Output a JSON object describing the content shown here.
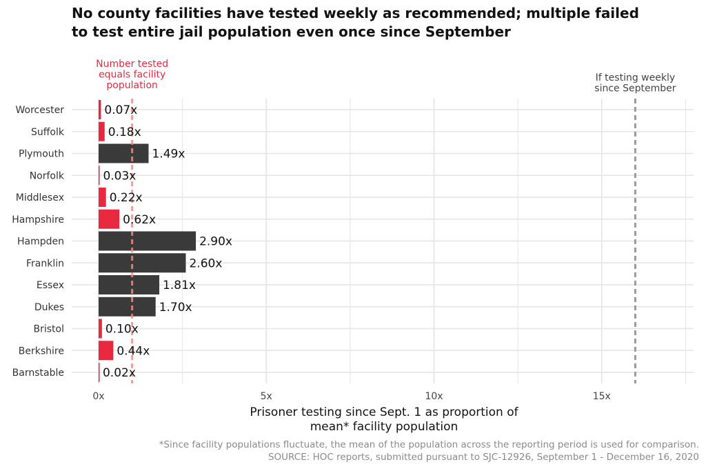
{
  "title": {
    "line1": "No county facilities have tested weekly as recommended; multiple failed",
    "line2": "to test entire jail population even once since September"
  },
  "annotations": {
    "reference_label": [
      "Number tested",
      "equals facility",
      "population"
    ],
    "weekly_label": [
      "If testing weekly",
      "since September"
    ],
    "reference_value": 1,
    "weekly_value": 16
  },
  "caption": {
    "line1": "*Since facility populations fluctuate, the mean of the population across the reporting period is used for comparison.",
    "line2": "SOURCE: HOC reports, submitted pursuant to SJC-12926, September 1 - December 16, 2020"
  },
  "colors": {
    "below_one": "#e8283f",
    "above_one": "#3a3a3a",
    "reference_line": "#f08a8a",
    "weekly_line": "#999999",
    "grid": "#e4e4e4"
  },
  "chart_data": {
    "type": "bar",
    "orientation": "horizontal",
    "categories": [
      "Worcester",
      "Suffolk",
      "Plymouth",
      "Norfolk",
      "Middlesex",
      "Hampshire",
      "Hampden",
      "Franklin",
      "Essex",
      "Dukes",
      "Bristol",
      "Berkshire",
      "Barnstable"
    ],
    "values": [
      0.07,
      0.18,
      1.49,
      0.03,
      0.22,
      0.62,
      2.9,
      2.6,
      1.81,
      1.7,
      0.1,
      0.44,
      0.02
    ],
    "value_labels": [
      "0.07x",
      "0.18x",
      "1.49x",
      "0.03x",
      "0.22x",
      "0.62x",
      "2.90x",
      "2.60x",
      "1.81x",
      "1.70x",
      "0.10x",
      "0.44x",
      "0.02x"
    ],
    "xlabel": [
      "Prisoner testing since Sept. 1 as proportion of",
      "mean* facility population"
    ],
    "ylabel": "",
    "xlim": [
      0,
      17.5
    ],
    "x_ticks": [
      0,
      5,
      10,
      15
    ],
    "x_tick_labels": [
      "0x",
      "5x",
      "10x",
      "15x"
    ],
    "grid": true,
    "legend": "none"
  }
}
